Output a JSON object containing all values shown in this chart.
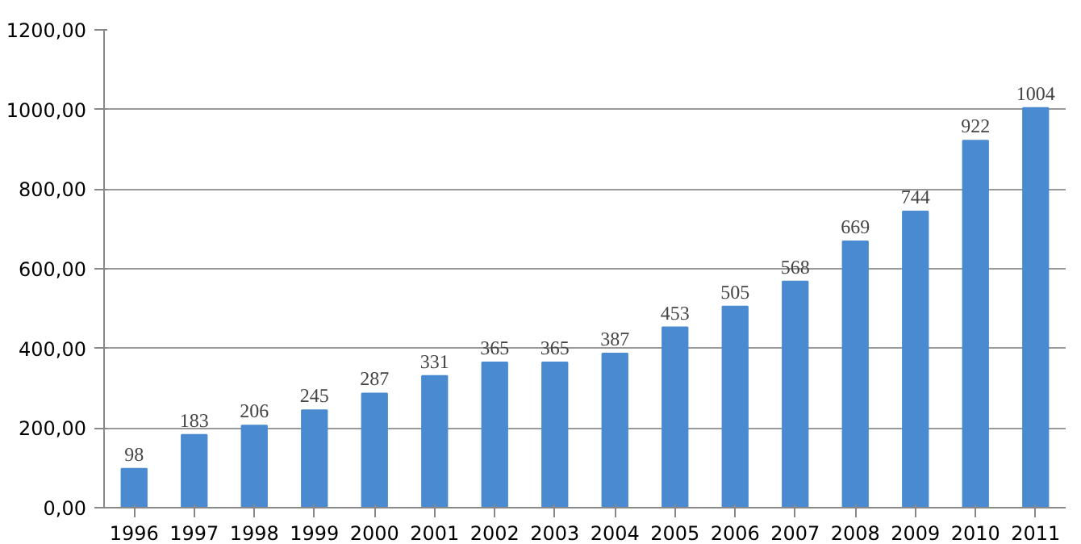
{
  "chart_data": {
    "type": "bar",
    "categories": [
      "1996",
      "1997",
      "1998",
      "1999",
      "2000",
      "2001",
      "2002",
      "2003",
      "2004",
      "2005",
      "2006",
      "2007",
      "2008",
      "2009",
      "2010",
      "2011"
    ],
    "values": [
      98,
      183,
      206,
      245,
      287,
      331,
      365,
      365,
      387,
      453,
      505,
      568,
      669,
      744,
      922,
      1004
    ],
    "color": "#4a8ad0",
    "ylim": [
      0,
      1200
    ],
    "yticks": [
      {
        "value": 0,
        "label": "0,00"
      },
      {
        "value": 200,
        "label": "200,00"
      },
      {
        "value": 400,
        "label": "400,00"
      },
      {
        "value": 600,
        "label": "600,00"
      },
      {
        "value": 800,
        "label": "800,00"
      },
      {
        "value": 1000,
        "label": "1000,00"
      },
      {
        "value": 1200,
        "label": "1200,00"
      }
    ],
    "grid": "y",
    "data_labels": true
  }
}
